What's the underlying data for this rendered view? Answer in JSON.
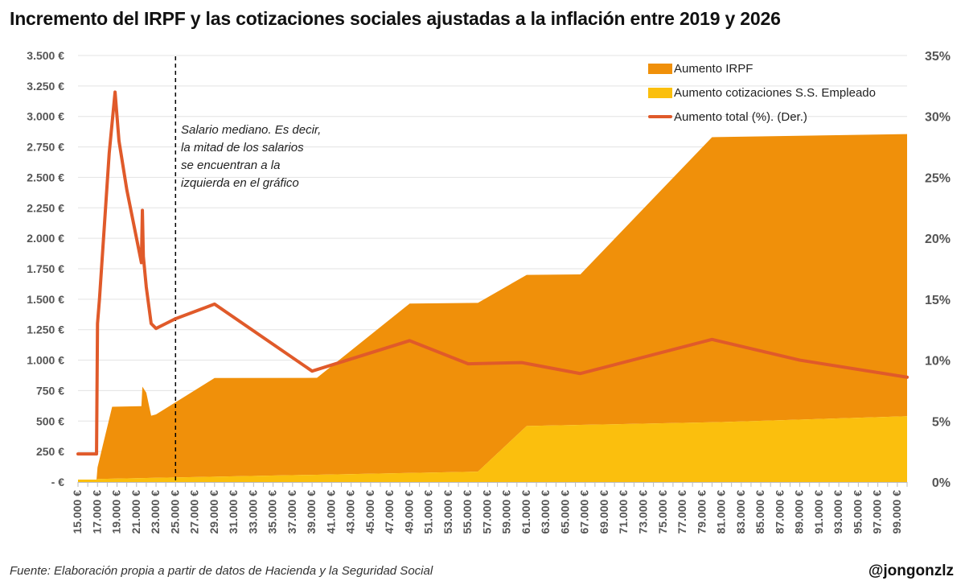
{
  "title": "Incremento del IRPF y las cotizaciones sociales ajustadas a la inflación entre 2019 y 2026",
  "source": "Fuente: Elaboración propia a partir de datos de Hacienda y la Seguridad Social",
  "handle": "@jongonzlz",
  "annotation": [
    "Salario mediano. Es decir,",
    "la mitad de los salarios",
    "se encuentran a la",
    "izquierda en el gráfico"
  ],
  "colors": {
    "irpf": "#f0900a",
    "ss": "#fbbf0d",
    "total": "#e05a2a",
    "grid": "#e3e3e3",
    "axis": "#555555"
  },
  "chart_data": {
    "type": "area",
    "title": "Incremento del IRPF y las cotizaciones sociales ajustadas a la inflación entre 2019 y 2026",
    "y_left": {
      "ylim": [
        0,
        3500
      ],
      "ticks": [
        0,
        250,
        500,
        750,
        1000,
        1250,
        1500,
        1750,
        2000,
        2250,
        2500,
        2750,
        3000,
        3250,
        3500
      ],
      "tick_labels": [
        "-  €",
        "250 €",
        "500 €",
        "750 €",
        "1.000 €",
        "1.250 €",
        "1.500 €",
        "1.750 €",
        "2.000 €",
        "2.250 €",
        "2.500 €",
        "2.750 €",
        "3.000 €",
        "3.250 €",
        "3.500 €"
      ]
    },
    "y_right": {
      "ylim": [
        0,
        35
      ],
      "ticks": [
        0,
        5,
        10,
        15,
        20,
        25,
        30,
        35
      ],
      "tick_labels": [
        "0%",
        "5%",
        "10%",
        "15%",
        "20%",
        "25%",
        "30%",
        "35%"
      ]
    },
    "x_range": [
      15000,
      100000
    ],
    "x_tick_labels": [
      "15.000 €",
      "17.000 €",
      "19.000 €",
      "21.000 €",
      "23.000 €",
      "25.000 €",
      "27.000 €",
      "29.000 €",
      "31.000 €",
      "33.000 €",
      "35.000 €",
      "37.000 €",
      "39.000 €",
      "41.000 €",
      "43.000 €",
      "45.000 €",
      "47.000 €",
      "49.000 €",
      "51.000 €",
      "53.000 €",
      "55.000 €",
      "57.000 €",
      "59.000 €",
      "61.000 €",
      "63.000 €",
      "65.000 €",
      "67.000 €",
      "69.000 €",
      "71.000 €",
      "73.000 €",
      "75.000 €",
      "77.000 €",
      "79.000 €",
      "81.000 €",
      "83.000 €",
      "85.000 €",
      "87.000 €",
      "89.000 €",
      "91.000 €",
      "93.000 €",
      "95.000 €",
      "97.000 €",
      "99.000 €"
    ],
    "median_salary_x": 25000,
    "legend_position": "top-right",
    "series": [
      {
        "name": "Aumento IRPF",
        "kind": "stacked-area",
        "axis": "left",
        "points": [
          [
            15000,
            0
          ],
          [
            16900,
            0
          ],
          [
            17000,
            95
          ],
          [
            18500,
            590
          ],
          [
            21500,
            590
          ],
          [
            21600,
            750
          ],
          [
            22000,
            700
          ],
          [
            22500,
            510
          ],
          [
            23000,
            520
          ],
          [
            29000,
            810
          ],
          [
            39500,
            795
          ],
          [
            49000,
            1390
          ],
          [
            56000,
            1385
          ],
          [
            61000,
            1240
          ],
          [
            66500,
            1235
          ],
          [
            80000,
            2340
          ],
          [
            100000,
            2315
          ]
        ]
      },
      {
        "name": "Aumento cotizaciones S.S. Empleado",
        "kind": "stacked-area",
        "axis": "left",
        "points": [
          [
            15000,
            20
          ],
          [
            16900,
            20
          ],
          [
            17000,
            25
          ],
          [
            20000,
            30
          ],
          [
            56000,
            85
          ],
          [
            61000,
            460
          ],
          [
            80000,
            490
          ],
          [
            100000,
            540
          ]
        ]
      },
      {
        "name": "Aumento total (%). (Der.)",
        "kind": "line",
        "axis": "right",
        "points": [
          [
            15000,
            2.3
          ],
          [
            16900,
            2.3
          ],
          [
            17000,
            13
          ],
          [
            17200,
            15
          ],
          [
            18200,
            27
          ],
          [
            18800,
            32
          ],
          [
            19200,
            28
          ],
          [
            20000,
            24
          ],
          [
            21500,
            18
          ],
          [
            21600,
            22.3
          ],
          [
            21700,
            18.5
          ],
          [
            22000,
            16
          ],
          [
            22500,
            13
          ],
          [
            23000,
            12.6
          ],
          [
            24000,
            13
          ],
          [
            25000,
            13.4
          ],
          [
            29000,
            14.6
          ],
          [
            39000,
            9.1
          ],
          [
            49000,
            11.6
          ],
          [
            55000,
            9.7
          ],
          [
            60500,
            9.8
          ],
          [
            66500,
            8.9
          ],
          [
            80000,
            11.7
          ],
          [
            89000,
            10
          ],
          [
            100000,
            8.6
          ]
        ]
      }
    ]
  }
}
